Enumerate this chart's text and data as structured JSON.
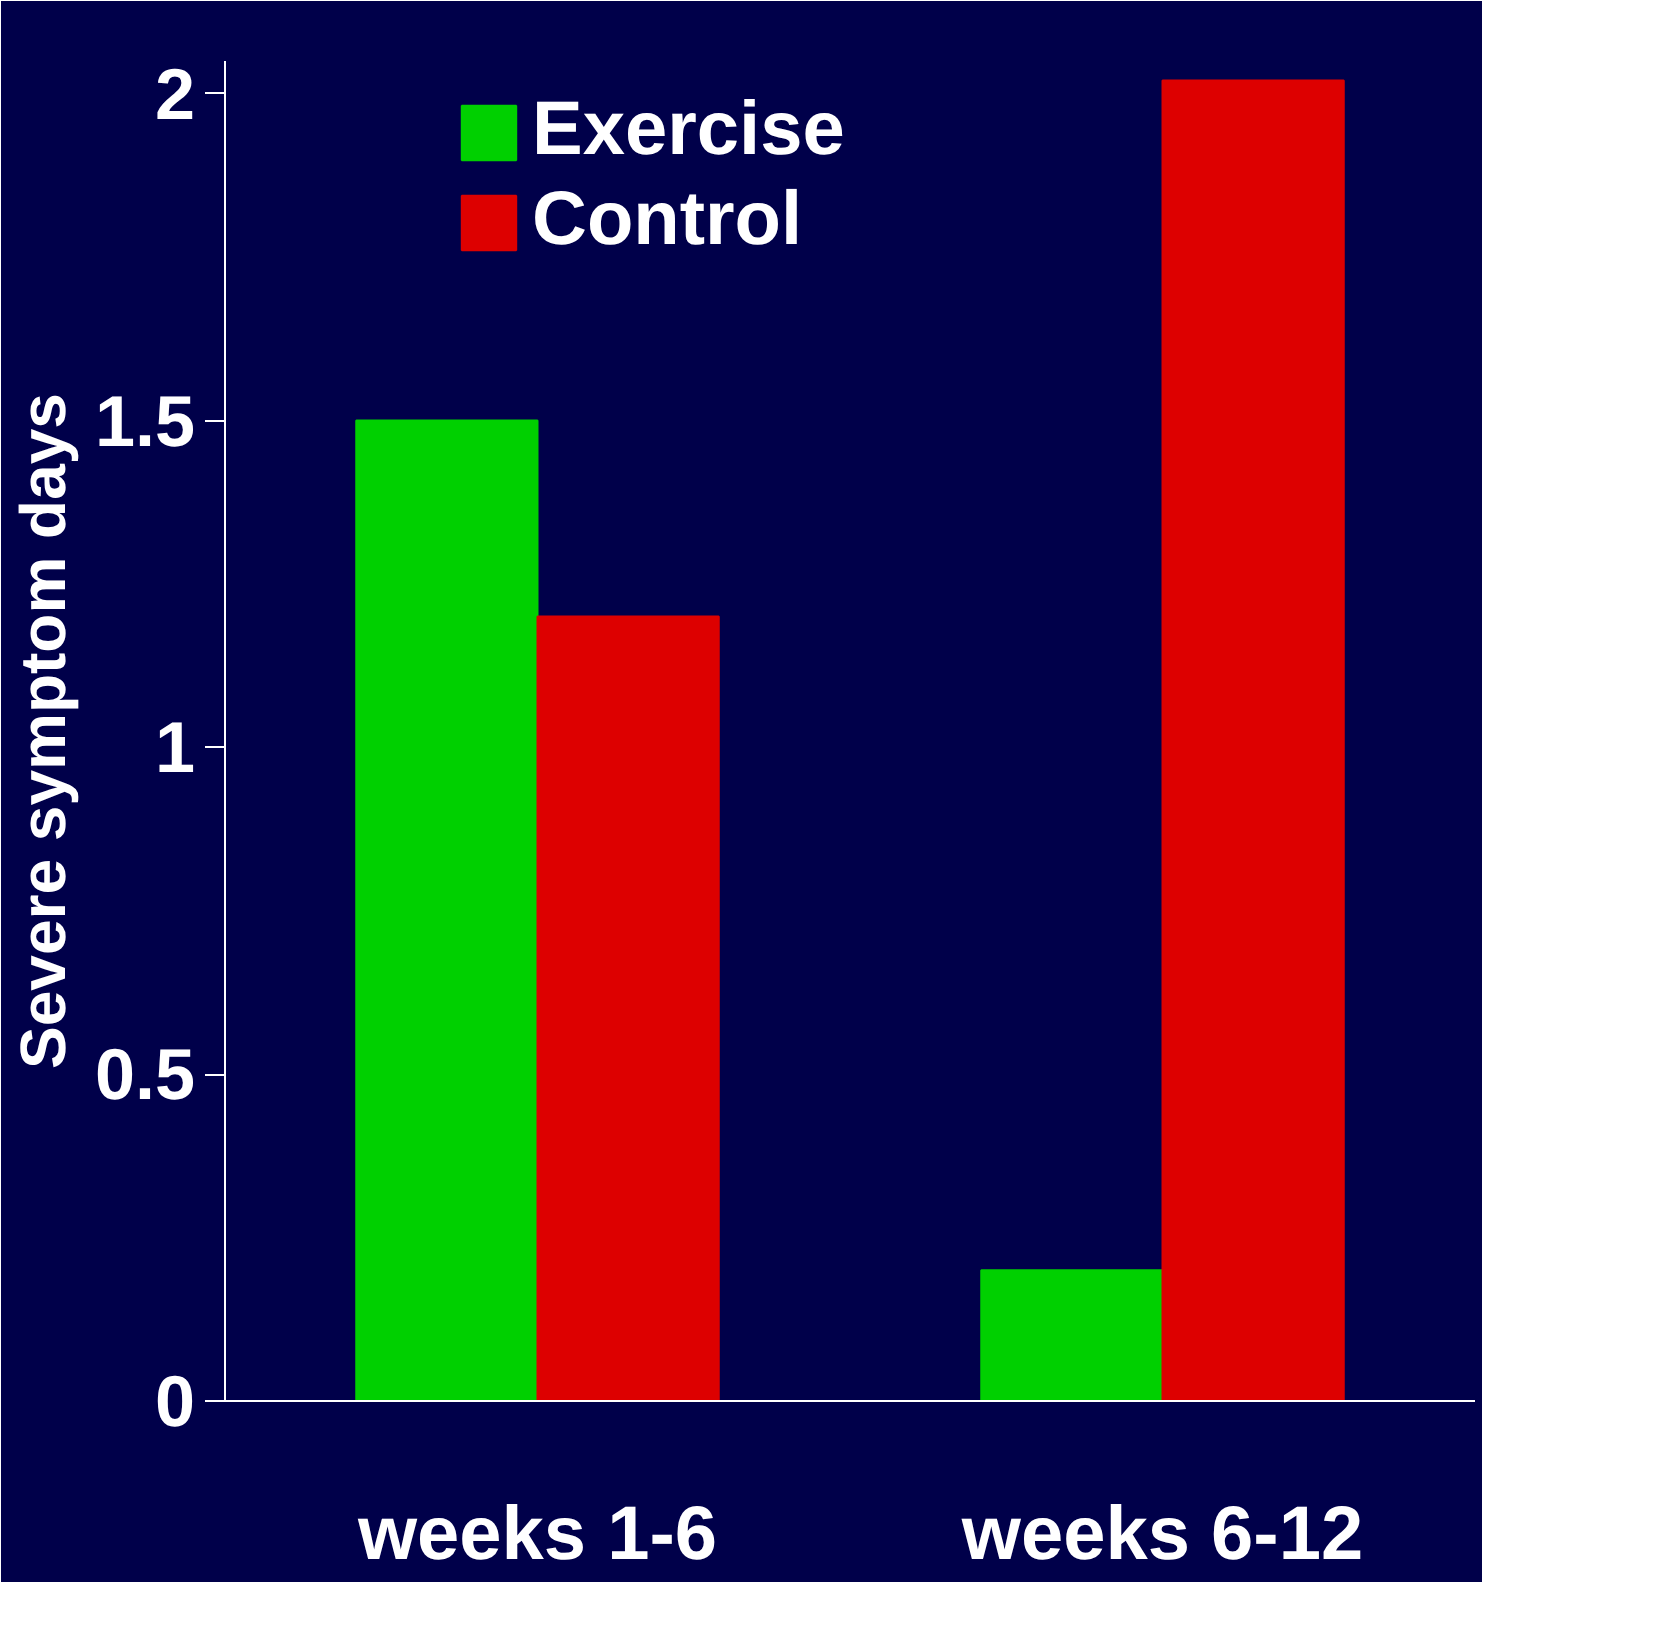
{
  "chart_data": {
    "type": "bar",
    "ylabel": "Severe symptom days",
    "categories": [
      "weeks 1-6",
      "weeks 6-12"
    ],
    "series": [
      {
        "name": "Exercise",
        "color": "#00d000",
        "values": [
          1.5,
          0.2
        ]
      },
      {
        "name": "Control",
        "color": "#dd0000",
        "values": [
          1.2,
          2.02
        ]
      }
    ],
    "ylim": [
      0,
      2.05
    ],
    "yticks": [
      0,
      0.5,
      1,
      1.5,
      2
    ],
    "legend": "top"
  }
}
